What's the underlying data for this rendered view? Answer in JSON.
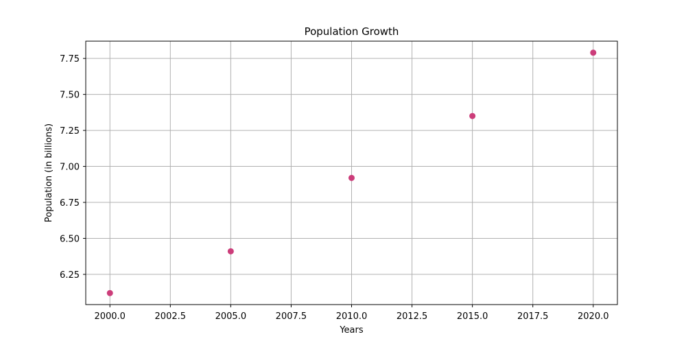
{
  "chart_data": {
    "type": "scatter",
    "title": "Population Growth",
    "xlabel": "Years",
    "ylabel": "Population (in billions)",
    "x": [
      2000,
      2005,
      2010,
      2015,
      2020
    ],
    "y": [
      6.12,
      6.41,
      6.92,
      7.35,
      7.79
    ],
    "xlim": [
      1999,
      2021
    ],
    "ylim": [
      6.04,
      7.87
    ],
    "xticks": [
      2000.0,
      2002.5,
      2005.0,
      2007.5,
      2010.0,
      2012.5,
      2015.0,
      2017.5,
      2020.0
    ],
    "xtick_labels": [
      "2000.0",
      "2002.5",
      "2005.0",
      "2007.5",
      "2010.0",
      "2012.5",
      "2015.0",
      "2017.5",
      "2020.0"
    ],
    "yticks": [
      6.25,
      6.5,
      6.75,
      7.0,
      7.25,
      7.5,
      7.75
    ],
    "ytick_labels": [
      "6.25",
      "6.50",
      "6.75",
      "7.00",
      "7.25",
      "7.50",
      "7.75"
    ],
    "grid": true,
    "marker_color": "#cc3d7a",
    "grid_color": "#b0b0b0"
  }
}
